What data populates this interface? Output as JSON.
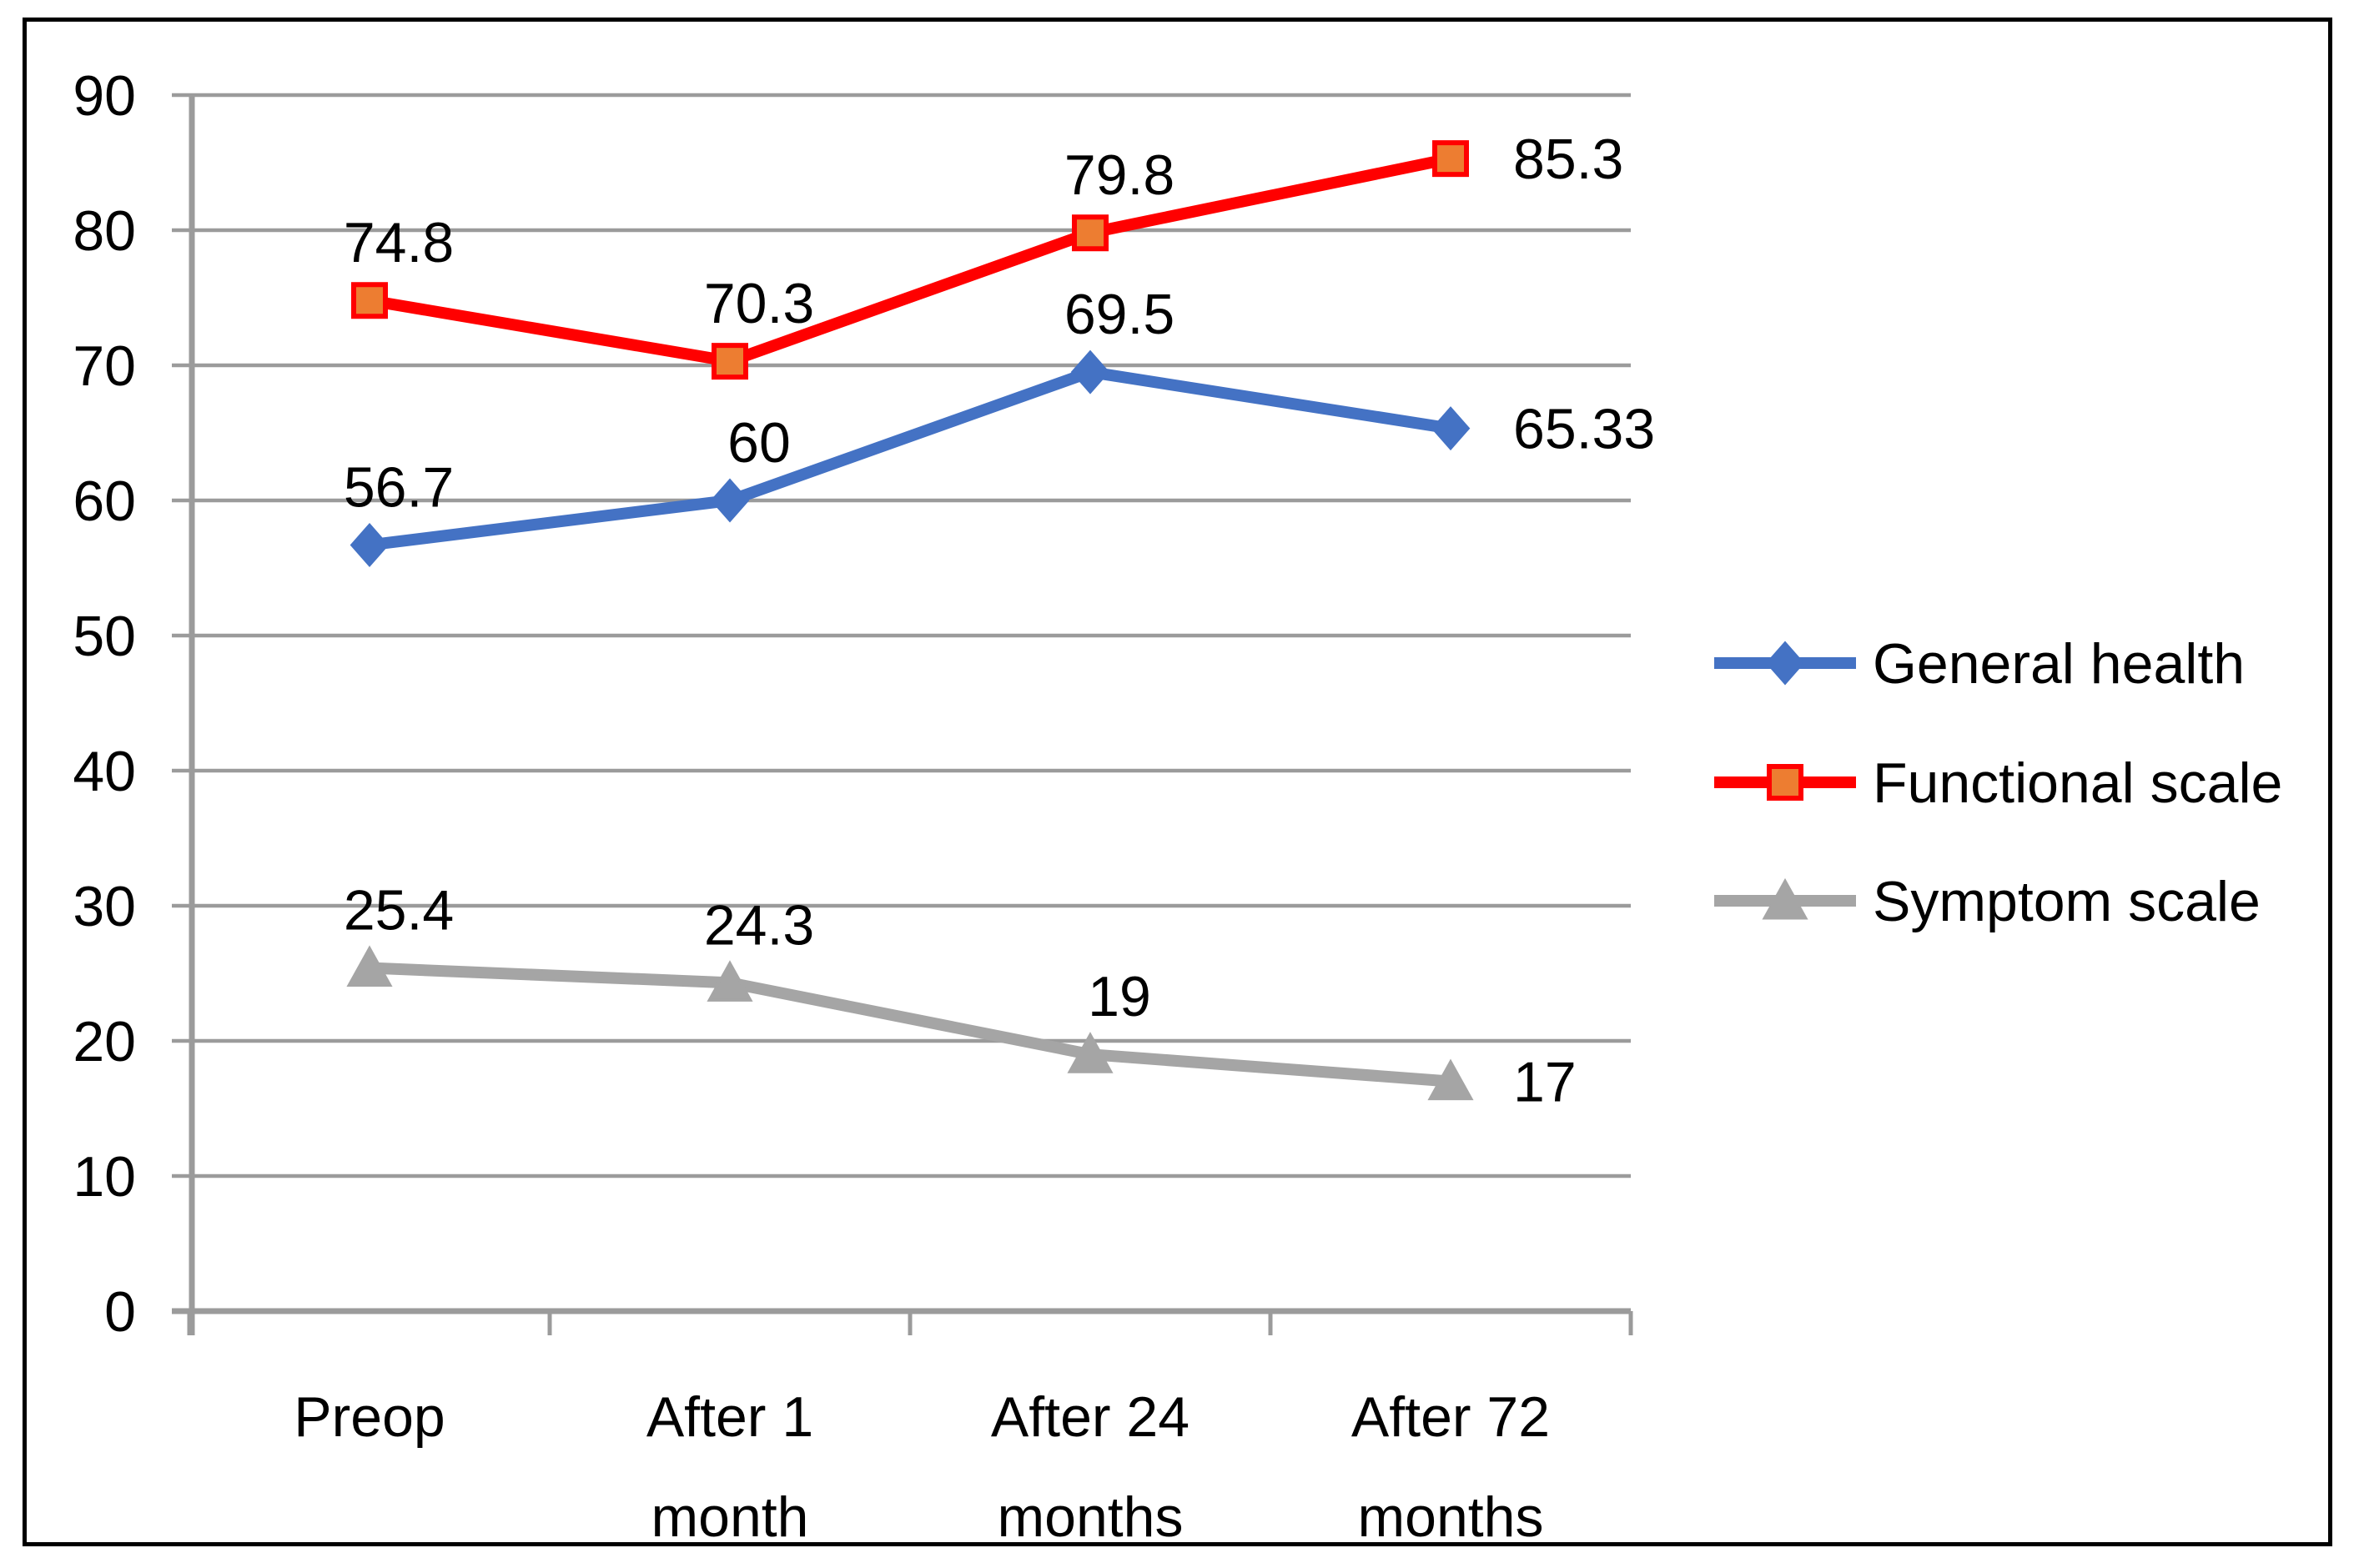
{
  "chart_data": {
    "type": "line",
    "title": "",
    "categories": [
      "Preop",
      "After 1 month",
      "After 24 months",
      "After 72 months"
    ],
    "category_label_lines": [
      [
        "Preop"
      ],
      [
        "After 1",
        "month"
      ],
      [
        "After 24",
        "months"
      ],
      [
        "After 72",
        "months"
      ]
    ],
    "series": [
      {
        "name": "General health",
        "color": "#4472C4",
        "marker": "diamond",
        "marker_fill": "#4472C4",
        "marker_stroke": "#4472C4",
        "values": [
          56.7,
          60,
          69.5,
          65.33
        ],
        "point_labels": [
          "56.7",
          "60",
          "69.5",
          "65.33"
        ]
      },
      {
        "name": "Functional scale",
        "color": "#FF0000",
        "marker": "square",
        "marker_fill": "#ED7D31",
        "marker_stroke": "#FF0000",
        "values": [
          74.8,
          70.3,
          79.8,
          85.3
        ],
        "point_labels": [
          "74.8",
          "70.3",
          "79.8",
          "85.3"
        ]
      },
      {
        "name": "Symptom scale",
        "color": "#A5A5A5",
        "marker": "triangle",
        "marker_fill": "#A5A5A5",
        "marker_stroke": "#A5A5A5",
        "values": [
          25.4,
          24.3,
          19,
          17
        ],
        "point_labels": [
          "25.4",
          "24.3",
          "19",
          "17"
        ]
      }
    ],
    "y_axis": {
      "min": 0,
      "max": 90,
      "step": 10,
      "tick_labels": [
        "0",
        "10",
        "20",
        "30",
        "40",
        "50",
        "60",
        "70",
        "80",
        "90"
      ]
    },
    "grid": true,
    "legend": {
      "position": "right",
      "entries": [
        "General health",
        "Functional scale",
        "Symptom scale"
      ]
    },
    "colors": {
      "grid": "#9B9B9B",
      "axis": "#9B9B9B",
      "text": "#000000",
      "background": "#FFFFFF",
      "frame_border": "#000000"
    }
  }
}
